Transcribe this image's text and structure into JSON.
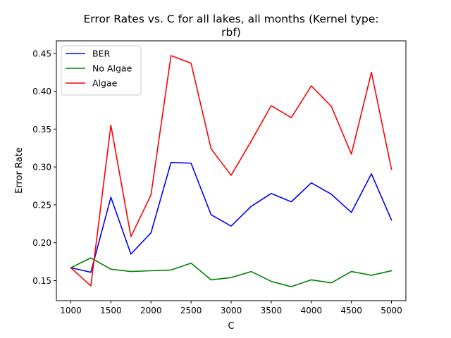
{
  "chart_data": {
    "type": "line",
    "title_line1": "Error Rates vs. C for all lakes, all months (Kernel type:",
    "title_line2": "rbf)",
    "xlabel": "C",
    "ylabel": "Error Rate",
    "xlim": [
      820,
      5180
    ],
    "ylim": [
      0.1235,
      0.4665
    ],
    "x": [
      1000,
      1250,
      1500,
      1750,
      2000,
      2250,
      2500,
      2750,
      3000,
      3250,
      3500,
      3750,
      4000,
      4250,
      4500,
      4750,
      5000
    ],
    "xticks": [
      1000,
      1500,
      2000,
      2500,
      3000,
      3500,
      4000,
      4500,
      5000
    ],
    "xtick_labels": [
      "1000",
      "1500",
      "2000",
      "2500",
      "3000",
      "3500",
      "4000",
      "4500",
      "5000"
    ],
    "yticks": [
      0.15,
      0.2,
      0.25,
      0.3,
      0.35,
      0.4,
      0.45
    ],
    "ytick_labels": [
      "0.15",
      "0.20",
      "0.25",
      "0.30",
      "0.35",
      "0.40",
      "0.45"
    ],
    "grid": false,
    "legend_position": "upper-left",
    "series": [
      {
        "name": "BER",
        "color": "#0000ff",
        "values": [
          0.167,
          0.161,
          0.26,
          0.185,
          0.213,
          0.306,
          0.305,
          0.237,
          0.222,
          0.248,
          0.265,
          0.254,
          0.279,
          0.264,
          0.24,
          0.291,
          0.23
        ]
      },
      {
        "name": "No Algae",
        "color": "#008000",
        "values": [
          0.167,
          0.18,
          0.165,
          0.162,
          0.163,
          0.164,
          0.173,
          0.151,
          0.154,
          0.162,
          0.149,
          0.142,
          0.151,
          0.147,
          0.162,
          0.157,
          0.163
        ]
      },
      {
        "name": "Algae",
        "color": "#ff0000",
        "values": [
          0.167,
          0.143,
          0.355,
          0.208,
          0.263,
          0.447,
          0.437,
          0.324,
          0.289,
          0.334,
          0.381,
          0.365,
          0.407,
          0.38,
          0.317,
          0.425,
          0.297
        ]
      }
    ]
  }
}
